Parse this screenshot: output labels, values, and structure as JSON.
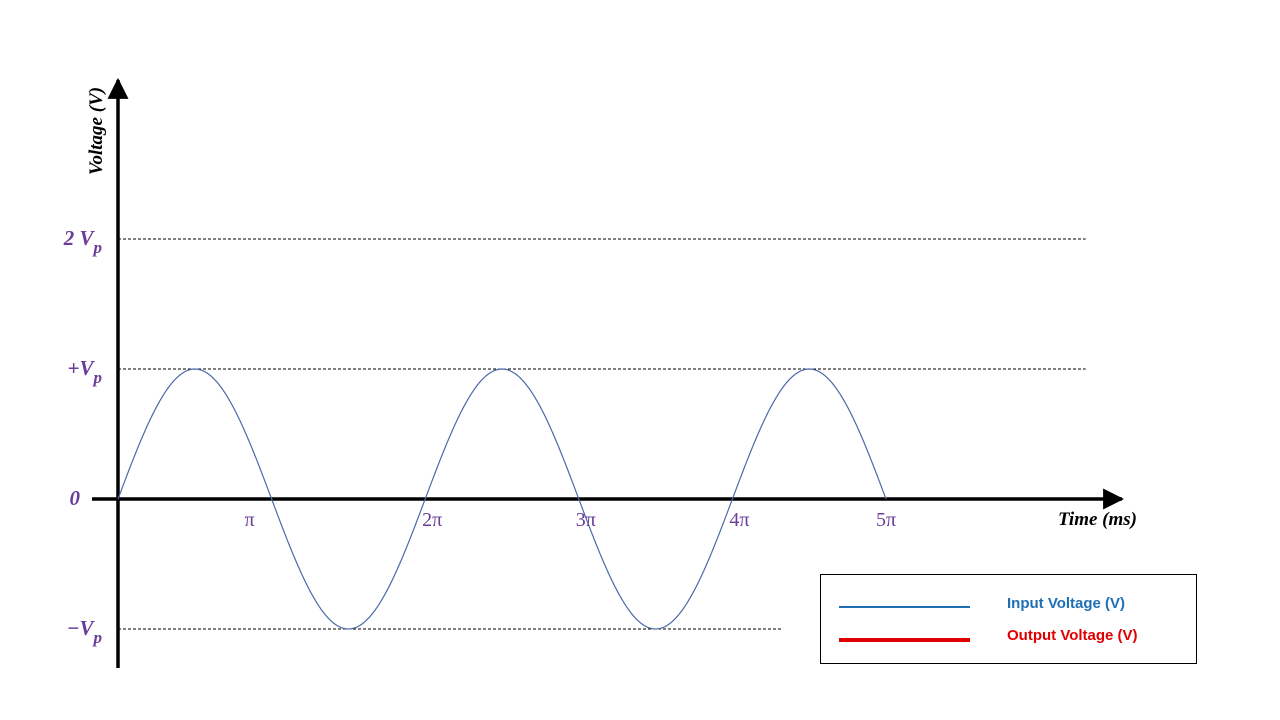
{
  "chart_data": {
    "type": "line",
    "title": "",
    "xlabel": "Time (ms)",
    "ylabel": "Voltage (V)",
    "x_tick_labels": [
      "π",
      "2π",
      "3π",
      "4π",
      "5π"
    ],
    "x_tick_values_pi": [
      1,
      2,
      3,
      4,
      5
    ],
    "y_ticks": [
      {
        "value": 2,
        "label_main": "2 V",
        "label_sub": "p"
      },
      {
        "value": 1,
        "label_main": "+V",
        "label_sub": "p"
      },
      {
        "value": 0,
        "label_main": "0",
        "label_sub": ""
      },
      {
        "value": -1,
        "label_main": "−V",
        "label_sub": "p"
      }
    ],
    "reference_lines": [
      {
        "value": 2,
        "x_end_pi": 6.3
      },
      {
        "value": 1,
        "x_end_pi": 6.3
      },
      {
        "value": -1,
        "x_end_pi": 4.33
      }
    ],
    "xlim_pi": [
      0,
      6.5
    ],
    "ylim": [
      -1.3,
      3.2
    ],
    "series": [
      {
        "name": "Input Voltage (V)",
        "function": "sin",
        "amplitude": 1,
        "x_range_pi": [
          0,
          5
        ],
        "color": "#4a6aa8"
      }
    ],
    "legend": {
      "position": "bottom-right",
      "entries": [
        {
          "label": "Input Voltage (V)",
          "color": "#1f6fb4",
          "text_color": "#1f6fb4"
        },
        {
          "label": "Output Voltage (V)",
          "color": "#e00000",
          "text_color": "#e00000"
        }
      ]
    },
    "colors": {
      "label": "#6a3d9a",
      "axis": "#000000"
    }
  }
}
